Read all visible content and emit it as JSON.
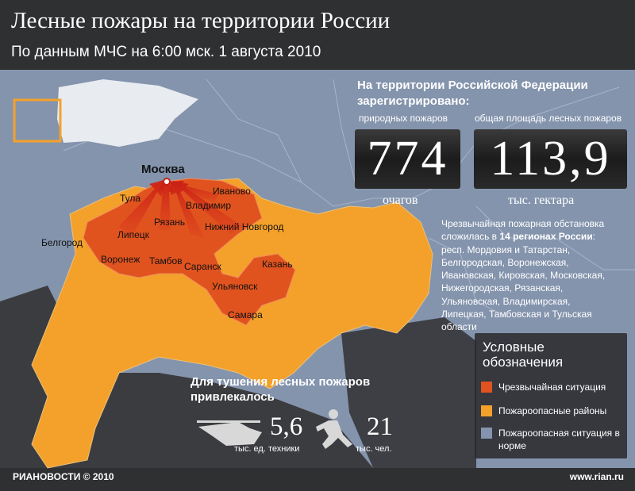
{
  "header": {
    "title": "Лесные пожары на территории России",
    "subtitle": "По данным МЧС на 6:00 мск. 1 августа 2010"
  },
  "stats": {
    "heading": "На территории Российской Федерации зарегистрировано:",
    "items": [
      {
        "label": "природных пожаров",
        "value": "774",
        "unit": "очагов"
      },
      {
        "label": "общая площадь лесных пожаров",
        "value": "113,9",
        "unit": "тыс. гектара"
      }
    ]
  },
  "note": {
    "prefix": "Чрезвычайная пожарная обстановка сложилась в",
    "bold": "14 регионах России",
    "rest": ": респ. Мордовия и Татарстан, Белгородская, Воронежская, Ивановская, Кировская, Московская, Нижегородская, Рязанская, Ульяновская, Владимирская, Липецкая, Тамбовская и Тульская области"
  },
  "cities": [
    "Москва",
    "Тула",
    "Рязань",
    "Владимир",
    "Иваново",
    "Нижний Новгород",
    "Липецк",
    "Воронеж",
    "Тамбов",
    "Саранск",
    "Казань",
    "Ульяновск",
    "Самара",
    "Белгород"
  ],
  "resources": {
    "heading": "Для тушения лесных пожаров привлекалось",
    "items": [
      {
        "value": "5,6",
        "unit": "тыс. ед. техники"
      },
      {
        "value": "21",
        "unit": "тыс. чел."
      }
    ]
  },
  "legend": {
    "title": "Условные обозначения",
    "items": [
      {
        "label": "Чрезвычайная ситуация",
        "color": "#e0531f"
      },
      {
        "label": "Пожароопасные районы",
        "color": "#f4a12c"
      },
      {
        "label": "Пожароопасная ситуация в норме",
        "color": "#8494ad"
      }
    ]
  },
  "footer": {
    "logo": "РИАНОВОСТИ",
    "copyright": "© 2010",
    "url": "www.rian.ru"
  }
}
